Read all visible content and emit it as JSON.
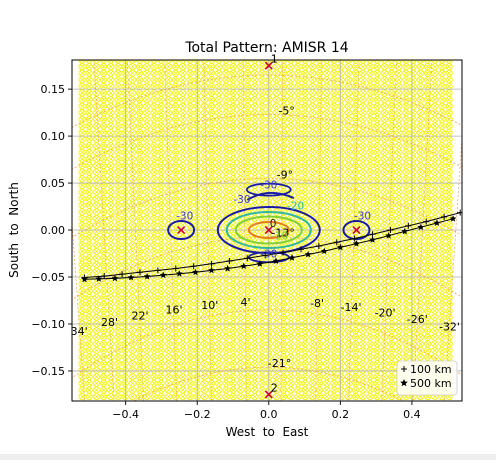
{
  "chart_data": {
    "type": "scatter",
    "title": "Total Pattern: AMISR 14",
    "xlabel": "West  to  East",
    "ylabel": "South  to  North",
    "xlim": [
      -0.55,
      0.54
    ],
    "ylim": [
      -0.182,
      0.181
    ],
    "xticks": [
      -0.4,
      -0.2,
      0.0,
      0.2,
      0.4
    ],
    "xtick_labels": [
      "−0.4",
      "−0.2",
      "0.0",
      "0.2",
      "0.4"
    ],
    "yticks": [
      0.15,
      0.1,
      0.05,
      0.0,
      -0.05,
      -0.1,
      -0.15
    ],
    "ytick_labels": [
      "0.15",
      "0.10",
      "0.05",
      "0.00",
      "−0.05",
      "−0.10",
      "−0.15"
    ],
    "grid": true,
    "colors": {
      "element_grid": "#f2f200",
      "marker_x": "#cc0033",
      "latlon_lines": "#f5a05a",
      "track": "#000000",
      "contour_outer": "#1a1aa8",
      "contour_mid": "#2fb8a0",
      "contour_inner": "#7fd13b",
      "contour_core": "#e87a20",
      "label_blue": "#3b3bd0"
    },
    "grating_markers": [
      {
        "label": "1",
        "x": 0.0,
        "y": 0.175
      },
      {
        "label": "2",
        "x": 0.0,
        "y": -0.175
      },
      {
        "label": "",
        "x": -0.245,
        "y": 0.0
      },
      {
        "label": "",
        "x": 0.245,
        "y": 0.0
      },
      {
        "label": "",
        "x": 0.0,
        "y": 0.0
      }
    ],
    "latitude_labels": [
      {
        "text": "-5°",
        "x": 0.05,
        "y": 0.123
      },
      {
        "text": "-9°",
        "x": 0.045,
        "y": 0.055
      },
      {
        "text": "-13°",
        "x": 0.04,
        "y": -0.007
      },
      {
        "text": "-21°",
        "x": 0.03,
        "y": -0.146
      }
    ],
    "longitude_labels": [
      {
        "text": "34'",
        "x": -0.53,
        "y": -0.112
      },
      {
        "text": "28'",
        "x": -0.445,
        "y": -0.102
      },
      {
        "text": "22'",
        "x": -0.36,
        "y": -0.095
      },
      {
        "text": "16'",
        "x": -0.265,
        "y": -0.089
      },
      {
        "text": "10'",
        "x": -0.165,
        "y": -0.084
      },
      {
        "text": "4'",
        "x": -0.065,
        "y": -0.081
      },
      {
        "text": "-8'",
        "x": 0.135,
        "y": -0.082
      },
      {
        "text": "-14'",
        "x": 0.23,
        "y": -0.086
      },
      {
        "text": "-20'",
        "x": 0.325,
        "y": -0.092
      },
      {
        "text": "-26'",
        "x": 0.415,
        "y": -0.099
      },
      {
        "text": "-32'",
        "x": 0.505,
        "y": -0.107
      }
    ],
    "contour_labels": [
      {
        "text": "-30",
        "x": 0.0,
        "y": 0.044,
        "color": "#3b3bd0"
      },
      {
        "text": "-30",
        "x": -0.075,
        "y": 0.029,
        "color": "#3b3bd0"
      },
      {
        "text": "-30",
        "x": -0.235,
        "y": 0.011,
        "color": "#3b3bd0"
      },
      {
        "text": "-30",
        "x": 0.262,
        "y": 0.011,
        "color": "#3b3bd0"
      },
      {
        "text": "-20",
        "x": 0.075,
        "y": 0.022,
        "color": "#2fb8a0"
      },
      {
        "text": "0",
        "x": 0.012,
        "y": 0.003,
        "color": "#222222"
      },
      {
        "text": "-30",
        "x": 0.0,
        "y": -0.029,
        "color": "#3b3bd0"
      },
      {
        "text": "-10",
        "x": 0.03,
        "y": -0.01,
        "color": "#7fd13b"
      }
    ],
    "track": {
      "x": [
        -0.515,
        -0.46,
        -0.41,
        -0.36,
        -0.31,
        -0.26,
        -0.21,
        -0.16,
        -0.11,
        -0.06,
        -0.01,
        0.04,
        0.09,
        0.14,
        0.19,
        0.24,
        0.29,
        0.34,
        0.39,
        0.44,
        0.49,
        0.535
      ],
      "y": [
        -0.0505,
        -0.049,
        -0.047,
        -0.045,
        -0.043,
        -0.041,
        -0.0385,
        -0.036,
        -0.033,
        -0.03,
        -0.027,
        -0.024,
        -0.0205,
        -0.017,
        -0.013,
        -0.009,
        -0.0045,
        0.0,
        0.0045,
        0.009,
        0.014,
        0.0185
      ]
    },
    "track_500": {
      "x": [
        -0.515,
        -0.475,
        -0.43,
        -0.385,
        -0.34,
        -0.295,
        -0.25,
        -0.205,
        -0.16,
        -0.115,
        -0.07,
        -0.025,
        0.02,
        0.065,
        0.11,
        0.155,
        0.2,
        0.245,
        0.29,
        0.335,
        0.38,
        0.425,
        0.47,
        0.515
      ],
      "y": [
        -0.0525,
        -0.052,
        -0.0515,
        -0.0505,
        -0.0495,
        -0.048,
        -0.0465,
        -0.045,
        -0.043,
        -0.041,
        -0.0385,
        -0.036,
        -0.033,
        -0.0295,
        -0.026,
        -0.0225,
        -0.0185,
        -0.0145,
        -0.0105,
        -0.006,
        -0.0015,
        0.003,
        0.0075,
        0.012
      ]
    },
    "legend": {
      "placement": "bottom-right",
      "entries": [
        {
          "marker": "+",
          "label": "100 km"
        },
        {
          "marker": "★",
          "label": "500 km"
        }
      ]
    }
  }
}
